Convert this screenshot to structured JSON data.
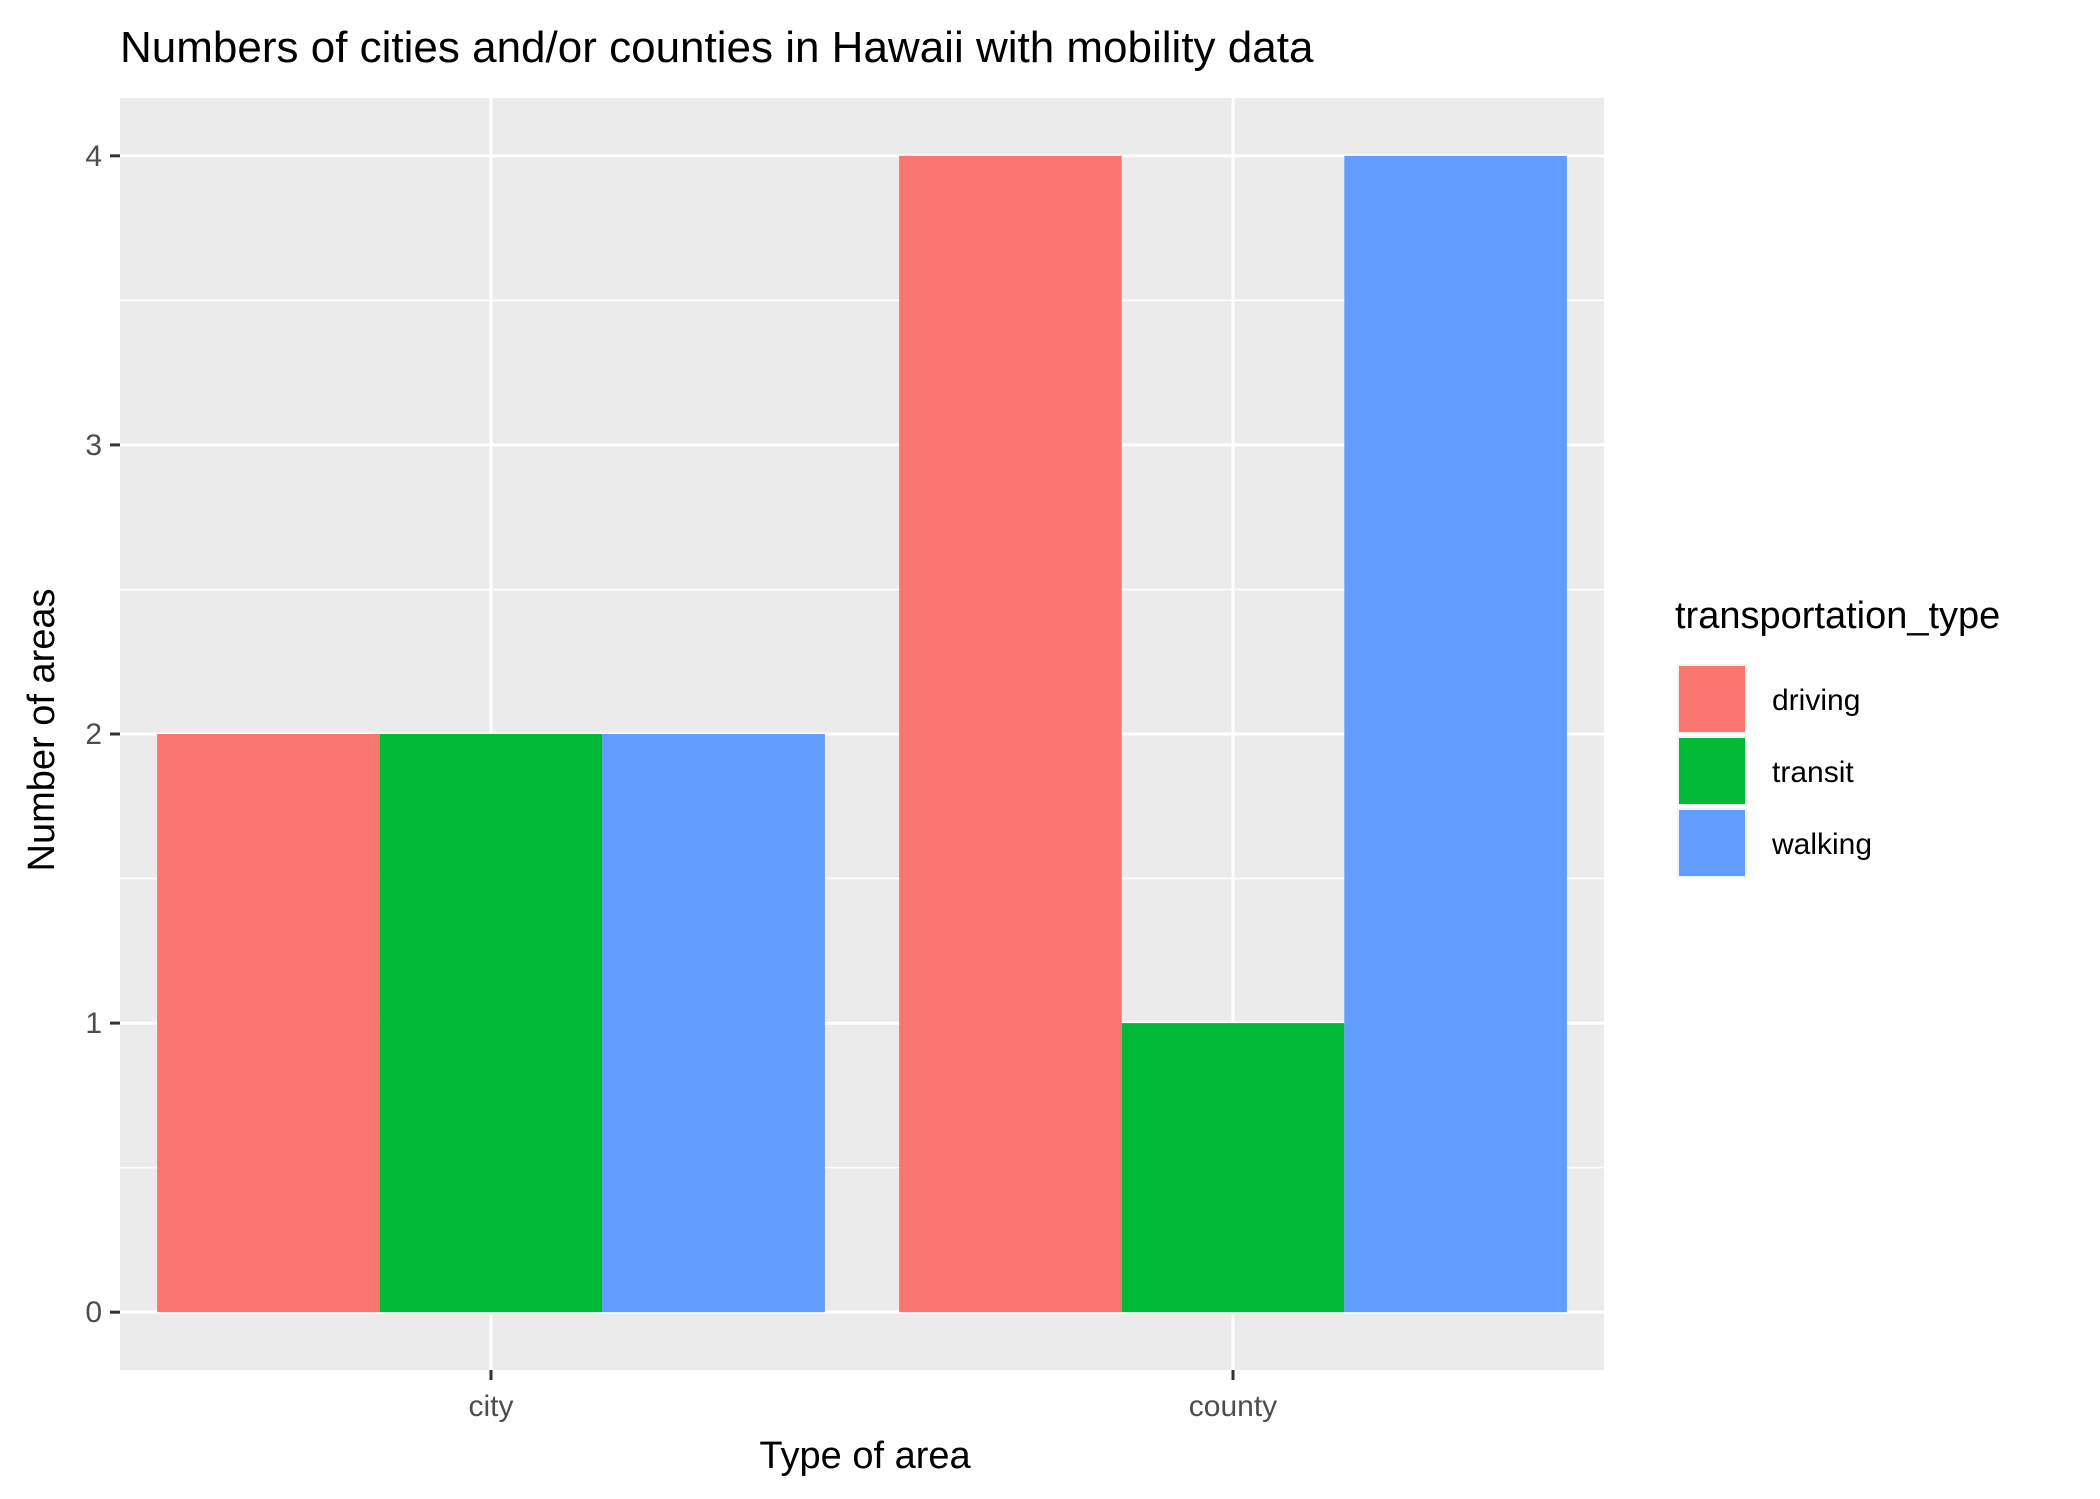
{
  "chart_data": {
    "type": "bar",
    "title": "Numbers of cities and/or counties in Hawaii with mobility data",
    "xlabel": "Type of area",
    "ylabel": "Number of areas",
    "categories": [
      "city",
      "county"
    ],
    "series": [
      {
        "name": "driving",
        "values": [
          2,
          4
        ],
        "color": "#F8766D"
      },
      {
        "name": "transit",
        "values": [
          2,
          1
        ],
        "color": "#00BA38"
      },
      {
        "name": "walking",
        "values": [
          2,
          4
        ],
        "color": "#619CFF"
      }
    ],
    "ylim": [
      -0.2,
      4.2
    ],
    "yticks": [
      "0",
      "1",
      "2",
      "3",
      "4"
    ],
    "legend": {
      "title": "transportation_type",
      "position": "right"
    },
    "grid": true,
    "panel_background": "#EBEBEB"
  }
}
